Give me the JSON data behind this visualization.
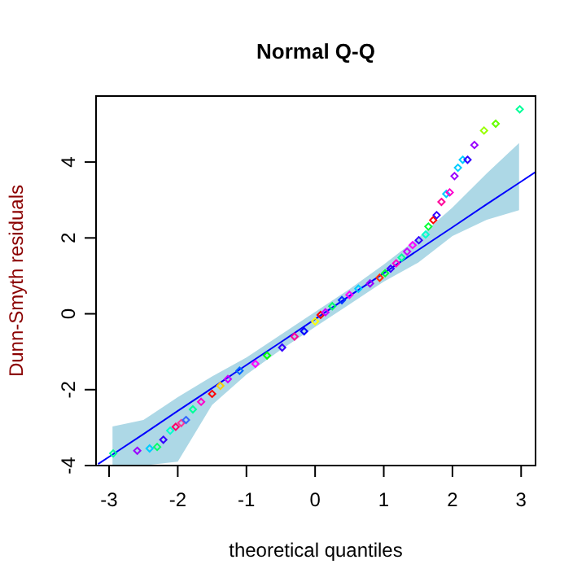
{
  "chart_data": {
    "type": "scatter",
    "title": "Normal Q-Q",
    "xlabel": "theoretical quantiles",
    "ylabel": "Dunn-Smyth residuals",
    "xlim": [
      -3.19,
      3.21
    ],
    "ylim": [
      -4.0,
      5.74
    ],
    "xticks": [
      -3,
      -2,
      -1,
      0,
      1,
      2,
      3
    ],
    "yticks": [
      -4,
      -2,
      0,
      2,
      4
    ],
    "grid": false,
    "marker": "diamond",
    "series": [
      {
        "type": "line",
        "color": "#0000ff",
        "line_style": "solid",
        "marker": "none",
        "x": [
          -3.16,
          -2.95,
          -2.5,
          -2.0,
          -1.5,
          -1.0,
          -0.5,
          0,
          0.5,
          1.0,
          1.5,
          2.0,
          2.5,
          2.97,
          3.21
        ],
        "values": [
          -3.96,
          -3.71,
          -3.17,
          -2.56,
          -1.96,
          -1.35,
          -0.75,
          -0.14,
          0.47,
          1.07,
          1.68,
          2.28,
          2.89,
          3.45,
          3.74
        ],
        "lower": [
          null,
          -4.0,
          -4.0,
          -3.9,
          -2.4,
          -1.6,
          -0.95,
          -0.35,
          0.25,
          0.85,
          1.35,
          2.05,
          2.48,
          2.73,
          null
        ],
        "upper": [
          null,
          -2.97,
          -2.8,
          -2.2,
          -1.65,
          -1.15,
          -0.55,
          0.05,
          0.65,
          1.3,
          2.0,
          2.8,
          3.7,
          4.5,
          null
        ]
      },
      {
        "x": [
          -2.94,
          -2.59,
          -2.41,
          -2.3,
          -2.21,
          -2.11,
          -2.03,
          -1.95,
          -1.88,
          -1.78,
          -1.66,
          -1.5,
          -1.38,
          -1.27,
          -1.1,
          -0.87,
          -0.7,
          -0.48,
          -0.3,
          -0.16,
          0.0,
          0.08,
          0.15,
          0.25,
          0.39,
          0.5,
          0.63,
          0.8,
          0.94,
          1.02,
          1.1,
          1.18,
          1.26,
          1.34,
          1.42,
          1.51,
          1.61,
          1.65,
          1.72,
          1.77,
          1.84,
          1.91,
          1.96,
          2.03,
          2.08,
          2.15,
          2.22,
          2.32,
          2.46,
          2.63,
          2.98
        ],
        "values": [
          -3.68,
          -3.61,
          -3.55,
          -3.51,
          -3.32,
          -3.08,
          -2.98,
          -2.88,
          -2.8,
          -2.52,
          -2.32,
          -2.11,
          -1.9,
          -1.72,
          -1.5,
          -1.32,
          -1.1,
          -0.89,
          -0.6,
          -0.46,
          -0.2,
          -0.03,
          0.04,
          0.2,
          0.36,
          0.5,
          0.66,
          0.8,
          0.95,
          1.07,
          1.19,
          1.33,
          1.48,
          1.64,
          1.81,
          1.94,
          2.09,
          2.3,
          2.47,
          2.6,
          2.95,
          3.16,
          3.2,
          3.63,
          3.85,
          4.06,
          4.06,
          4.45,
          4.83,
          5.01,
          5.39
        ],
        "colors": [
          "#00ff99",
          "#9900ff",
          "#00ccff",
          "#00ff66",
          "#3300ff",
          "#00ffcc",
          "#ff0066",
          "#ff3399",
          "#3366ff",
          "#00ff99",
          "#ff00cc",
          "#ff0000",
          "#ffcc00",
          "#cc00ff",
          "#0066ff",
          "#ff00ff",
          "#00ff00",
          "#3300ff",
          "#ff0099",
          "#0000ff",
          "#ffff00",
          "#ff0000",
          "#cc00ff",
          "#00ff66",
          "#0033ff",
          "#ff00ff",
          "#00ccff",
          "#9900ff",
          "#ff3300",
          "#00ff33",
          "#3300ff",
          "#ff00cc",
          "#00ff99",
          "#cc00ff",
          "#ff00ff",
          "#3300ff",
          "#00ffcc",
          "#00ff33",
          "#ff0000",
          "#3300ff",
          "#ff0099",
          "#00ccff",
          "#ff00cc",
          "#9900ff",
          "#00ccff",
          "#00ccff",
          "#3300ff",
          "#9900ff",
          "#99ff00",
          "#66ff00",
          "#00ff99"
        ]
      }
    ]
  }
}
